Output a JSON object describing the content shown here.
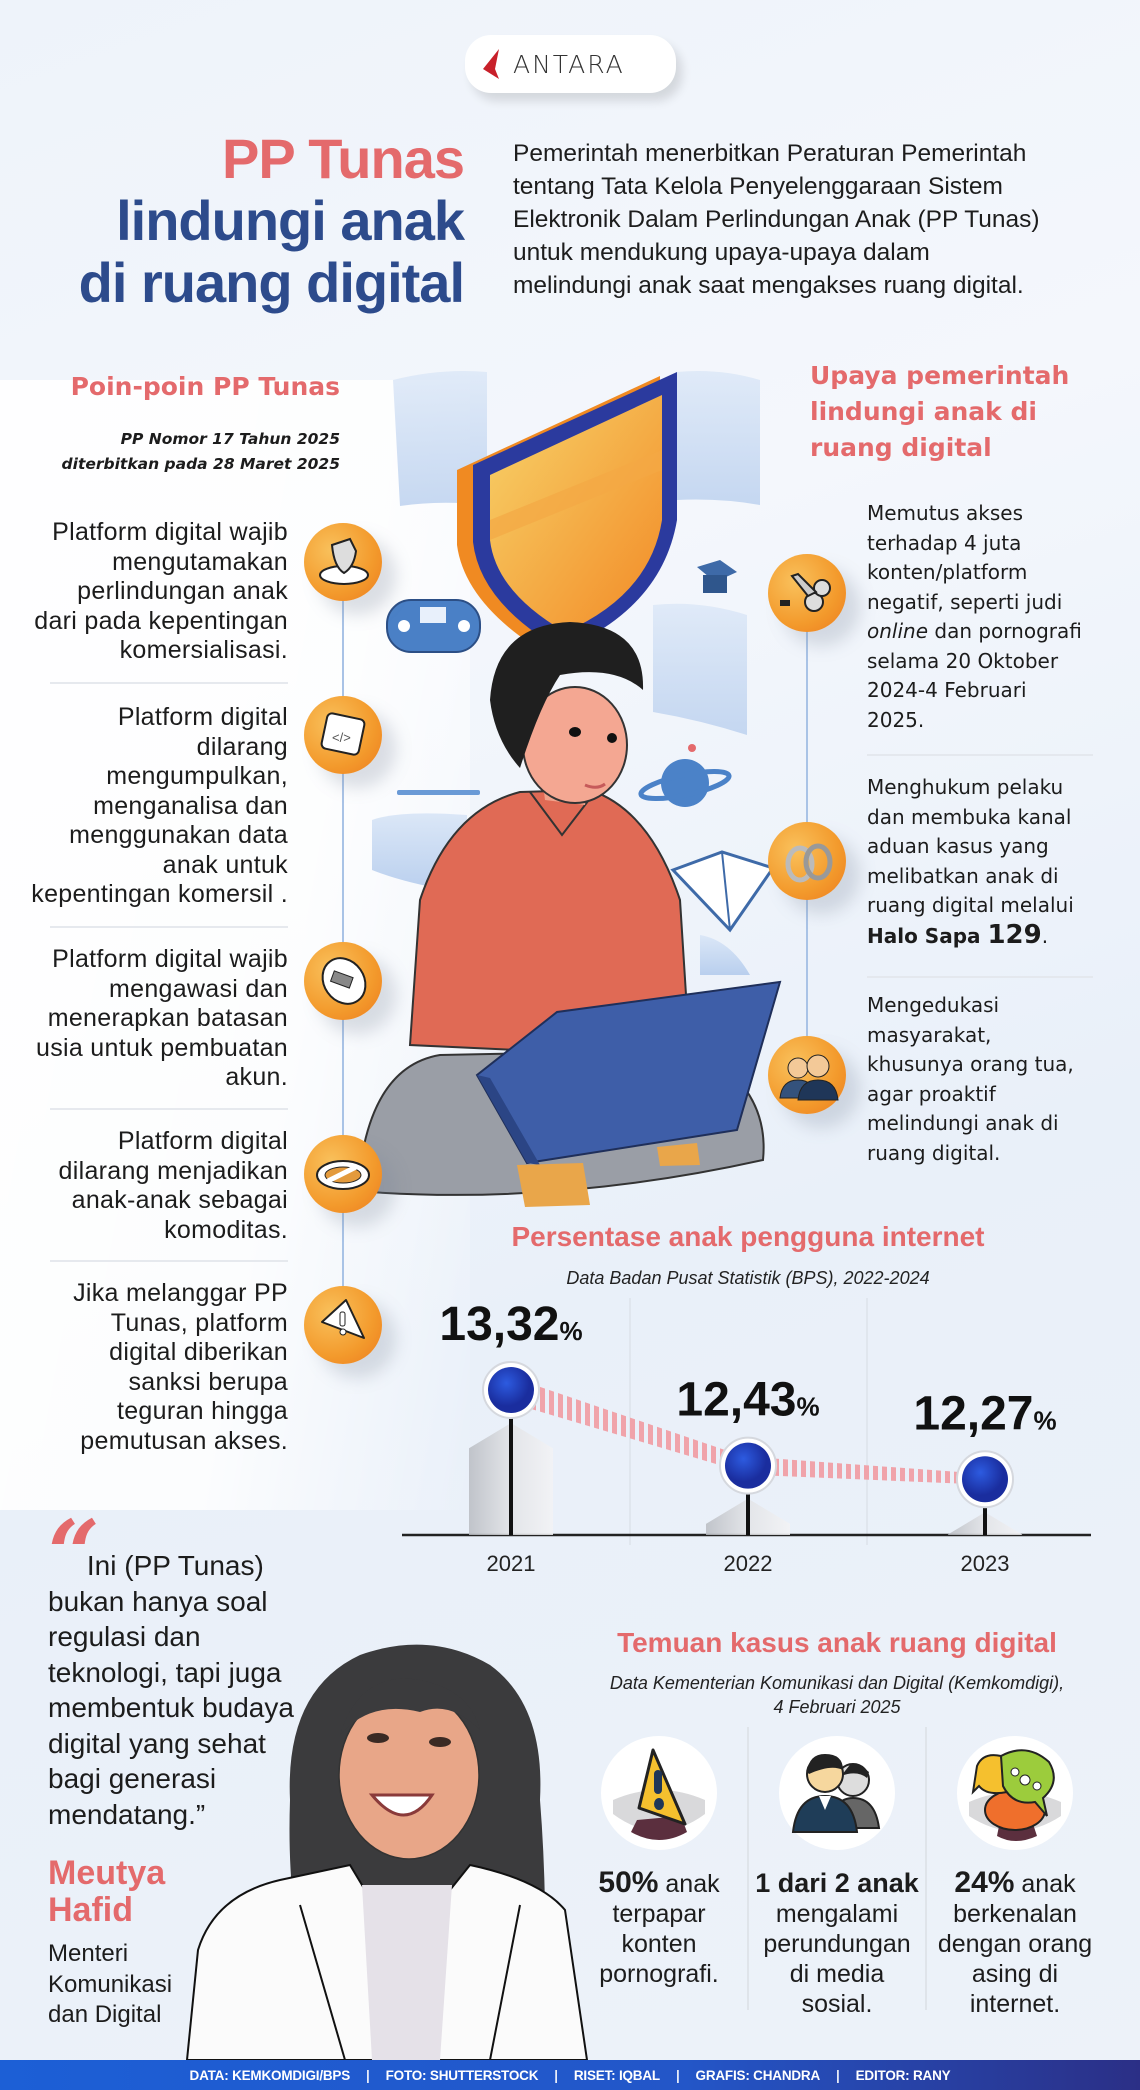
{
  "brand": {
    "logo_text": "ANTARA",
    "accent": "#e46a6c",
    "navy": "#2d4b8c"
  },
  "header": {
    "title_line1": "PP Tunas",
    "title_line2": "lindungi anak",
    "title_line3": "di ruang digital",
    "intro": "Pemerintah menerbitkan Peraturan Pemerintah\ntentang Tata Kelola Penyelenggaraan Sistem\nElektronik Dalam Perlindungan Anak (PP Tunas)\nuntuk mendukung upaya-upaya dalam\nmelindungi anak saat mengakses ruang digital."
  },
  "points": {
    "heading": "Poin-poin PP Tunas",
    "subtitle": "PP Nomor 17 Tahun 2025\nditerbitkan pada 28 Maret 2025",
    "items": [
      {
        "text": "Platform digital wajib\nmengutamakan\nperlindungan anak\ndari pada kepentingan\nkomersialisasi.",
        "icon": "shield-on-plate-icon"
      },
      {
        "text": "Platform digital\ndilarang\nmengumpulkan,\nmenganalisa dan\nmenggunakan data\nanak untuk\nkepentingan komersil .",
        "icon": "code-window-icon"
      },
      {
        "text": "Platform digital wajib\nmengawasi dan\nmenerapkan batasan\nusia untuk pembuatan\nakun.",
        "icon": "restriction-disc-icon"
      },
      {
        "text": "Platform digital\ndilarang menjadikan\nanak-anak sebagai\nkomoditas.",
        "icon": "prohibited-sign-icon"
      },
      {
        "text": "Jika melanggar PP\nTunas, platform\ndigital diberikan\nsanksi berupa\nteguran hingga\npemutusan akses.",
        "icon": "warning-triangle-icon"
      }
    ]
  },
  "efforts": {
    "heading": "Upaya pemerintah\nlindungi anak di\nruang digital",
    "items": [
      {
        "pre": "Memutus akses\nterhadap 4 juta\nkonten/platform\nnegatif, seperti judi\n",
        "em": "online",
        "post": " dan pornografi\nselama 20 Oktober\n2024-4 Februari\n2025.",
        "icon": "scissors-icon"
      },
      {
        "pre": "Menghukum pelaku\ndan membuka kanal\naduan kasus yang\nmelibatkan anak di\nruang digital melalui\n",
        "strong": "Halo Sapa ",
        "strong_big": "129",
        "post": ".",
        "icon": "handcuffs-icon"
      },
      {
        "pre": "Mengedukasi\nmasyarakat,\nkhusunya orang tua,\nagar proaktif\nmelindungi anak di\nruang digital.",
        "icon": "people-icon"
      }
    ]
  },
  "chart_data": {
    "type": "line",
    "title": "Persentase anak pengguna internet",
    "subtitle": "Data Badan Pusat Statistik (BPS), 2022-2024",
    "categories": [
      "2021",
      "2022",
      "2023"
    ],
    "values": [
      13.32,
      12.43,
      12.27
    ],
    "value_labels": [
      "13,32",
      "12,43",
      "12,27"
    ],
    "unit": "%",
    "grid": false,
    "colors": {
      "dot": "#1e3fb8",
      "connector": "#f0a3aa"
    }
  },
  "quote": {
    "open_mark": "“",
    "text": "     Ini (PP Tunas)\nbukan hanya soal\nregulasi dan\nteknologi, tapi juga\nmembentuk budaya\ndigital yang sehat\nbagi generasi\nmendatang.”",
    "name": "Meutya\nHafid",
    "role": "Menteri\nKomunikasi\ndan Digital"
  },
  "findings": {
    "title": "Temuan kasus anak ruang digital",
    "subtitle": "Data Kementerian Komunikasi dan Digital (Kemkomdigi),\n4 Februari 2025",
    "items": [
      {
        "bold": "50%",
        "lead": " anak",
        "rest": "terpapar\nkonten\npornografi.",
        "icon": "warning-sign-icon"
      },
      {
        "bold": "1 dari 2 anak",
        "lead": "",
        "rest": "mengalami\nperundungan\ndi media\nsosial.",
        "icon": "two-people-icon"
      },
      {
        "bold": "24%",
        "lead": " anak",
        "rest": "berkenalan\ndengan orang\nasing di\ninternet.",
        "icon": "chat-bubbles-icon"
      }
    ]
  },
  "footer": {
    "credits": [
      "DATA: KEMKOMDIGI/BPS",
      "FOTO: SHUTTERSTOCK",
      "RISET: IQBAL",
      "GRAFIS: CHANDRA",
      "EDITOR: RANY"
    ],
    "separator": "|"
  }
}
